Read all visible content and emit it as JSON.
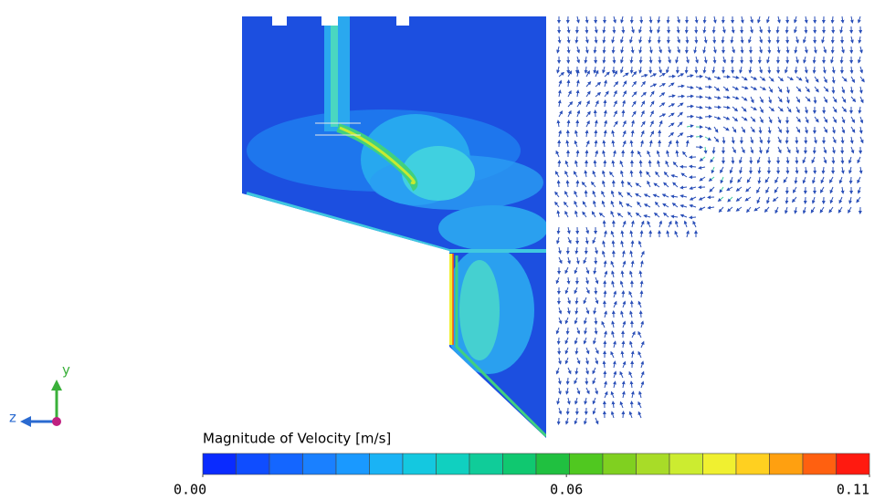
{
  "colorbar": {
    "title": "Magnitude of Velocity [m/s]",
    "range": [
      0,
      0.11
    ],
    "ticks": [
      {
        "value": 0,
        "label": "0.00"
      },
      {
        "value": 0.06,
        "label": "0.06"
      },
      {
        "value": 0.11,
        "label": "0.11"
      }
    ],
    "colors": [
      "#0a2bff",
      "#0f4dff",
      "#1466ff",
      "#1a80ff",
      "#1a99ff",
      "#1ab3f5",
      "#14c8e0",
      "#10d0c0",
      "#10cc99",
      "#10c870",
      "#20c040",
      "#50c820",
      "#80d020",
      "#a8dc28",
      "#ccec30",
      "#f0f030",
      "#ffd020",
      "#ffa010",
      "#ff6010",
      "#ff1a10"
    ]
  },
  "axes_triad": {
    "y": "y",
    "z": "z"
  }
}
